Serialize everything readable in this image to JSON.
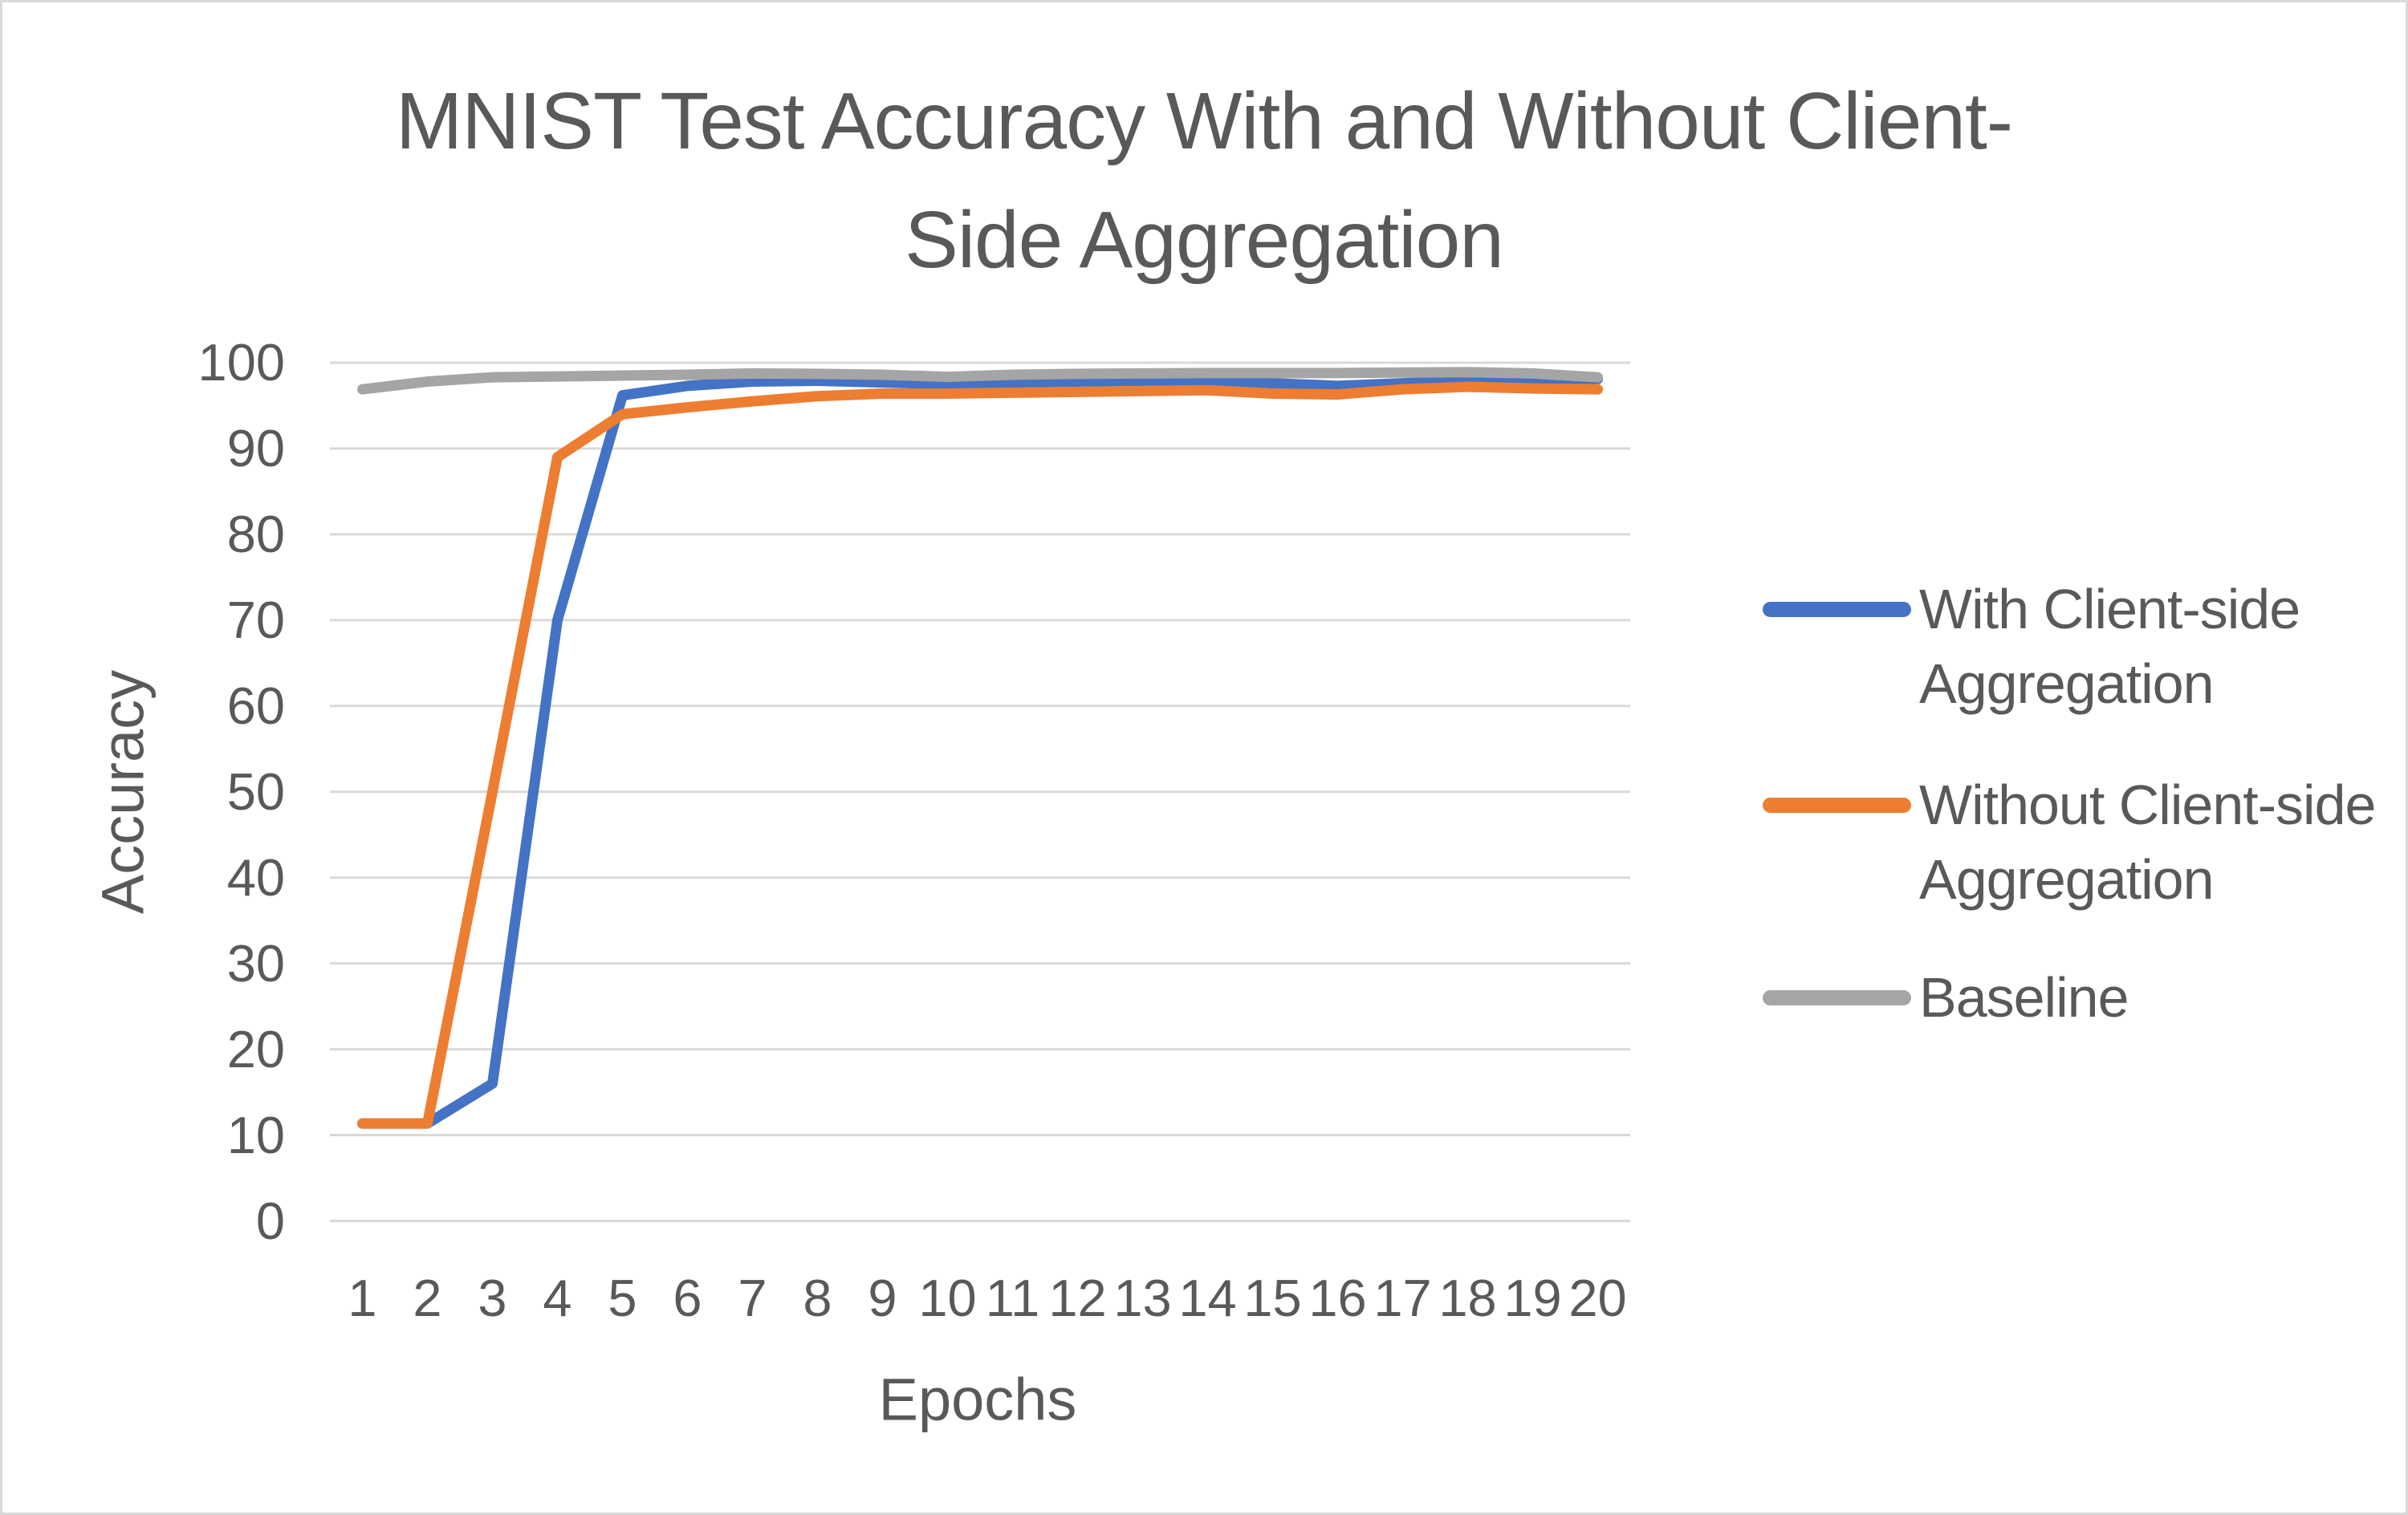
{
  "chart_data": {
    "type": "line",
    "title": "MNIST Test Accuracy With and Without Client-Side Aggregation",
    "title_lines": [
      "MNIST Test Accuracy With and Without Client-",
      "Side Aggregation"
    ],
    "xlabel": "Epochs",
    "ylabel": "Accuracy",
    "x": [
      1,
      2,
      3,
      4,
      5,
      6,
      7,
      8,
      9,
      10,
      11,
      12,
      13,
      14,
      15,
      16,
      17,
      18,
      19,
      20
    ],
    "ylim": [
      0,
      100
    ],
    "yticks": [
      0,
      10,
      20,
      30,
      40,
      50,
      60,
      70,
      80,
      90,
      100
    ],
    "grid": "horizontal",
    "legend_position": "right",
    "series": [
      {
        "name": "With Client-side Aggregation",
        "legend_lines": [
          "With Client-side",
          "Aggregation"
        ],
        "color": "#4472C4",
        "values": [
          11.35,
          11.35,
          16,
          70,
          96.2,
          97.3,
          97.8,
          97.9,
          97.7,
          97.5,
          97.7,
          97.8,
          97.9,
          97.8,
          97.6,
          97.3,
          97.6,
          97.9,
          98.0,
          98.1
        ]
      },
      {
        "name": "Without Client-side Aggregation",
        "legend_lines": [
          "Without Client-side",
          "Aggregation"
        ],
        "color": "#ED7D31",
        "values": [
          11.35,
          11.35,
          50,
          89,
          94.0,
          94.8,
          95.5,
          96.1,
          96.4,
          96.4,
          96.5,
          96.6,
          96.7,
          96.8,
          96.4,
          96.3,
          96.9,
          97.2,
          97.0,
          96.9
        ]
      },
      {
        "name": "Baseline",
        "legend_lines": [
          "Baseline"
        ],
        "color": "#A5A5A5",
        "values": [
          96.9,
          97.8,
          98.3,
          98.4,
          98.5,
          98.6,
          98.75,
          98.7,
          98.6,
          98.35,
          98.6,
          98.7,
          98.75,
          98.8,
          98.8,
          98.8,
          98.85,
          98.9,
          98.75,
          98.3
        ]
      }
    ],
    "colors": {
      "text": "#595959",
      "gridline": "#D9D9D9",
      "background": "#FFFFFF",
      "border": "#D9D9D9"
    }
  }
}
